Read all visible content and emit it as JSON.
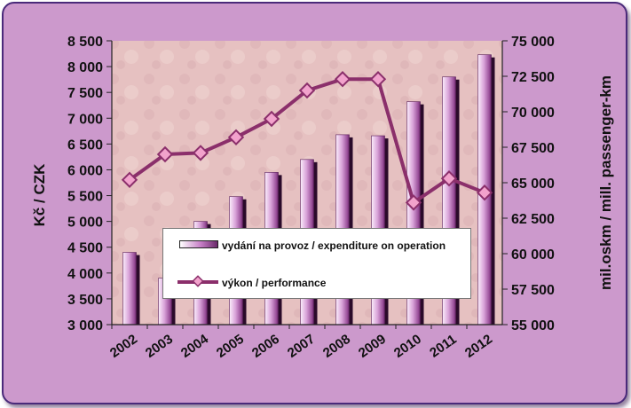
{
  "chart_data": {
    "type": "bar+line",
    "categories": [
      "2002",
      "2003",
      "2004",
      "2005",
      "2006",
      "2007",
      "2008",
      "2009",
      "2010",
      "2011",
      "2012"
    ],
    "series": [
      {
        "name": "vydání na provoz / expenditure on operation",
        "type": "bar",
        "axis": "left",
        "values": [
          4400,
          3900,
          5000,
          5480,
          5950,
          6200,
          6680,
          6660,
          7320,
          7800,
          8230
        ]
      },
      {
        "name": "výkon / performance",
        "type": "line",
        "axis": "right",
        "values": [
          65200,
          67000,
          67100,
          68200,
          69500,
          71500,
          72300,
          72300,
          63600,
          65300,
          64300
        ]
      }
    ],
    "ylabel_left": "Kč / CZK",
    "ylabel_right": "mil.oskm / mill. passenger-km",
    "ylim_left": [
      3000,
      8500
    ],
    "ylim_right": [
      55000,
      75000
    ],
    "yticks_left": [
      "3 000",
      "3 500",
      "4 000",
      "4 500",
      "5 000",
      "5 500",
      "6 000",
      "6 500",
      "7 000",
      "7 500",
      "8 000",
      "8 500"
    ],
    "yticks_right": [
      "55 000",
      "57 500",
      "60 000",
      "62 500",
      "65 000",
      "67 500",
      "70 000",
      "72 500",
      "75 000"
    ],
    "legend_position": "bottom-center inside plot",
    "bar_color": "#b070b0",
    "line_color": "#8b2f6b",
    "marker_color": "#f2a2cc",
    "plot_background": "#e8c4c4",
    "frame_background": "#cc99cc"
  },
  "legend": {
    "bar_label": "vydání na provoz / expenditure on operation",
    "line_label": "výkon / performance"
  }
}
